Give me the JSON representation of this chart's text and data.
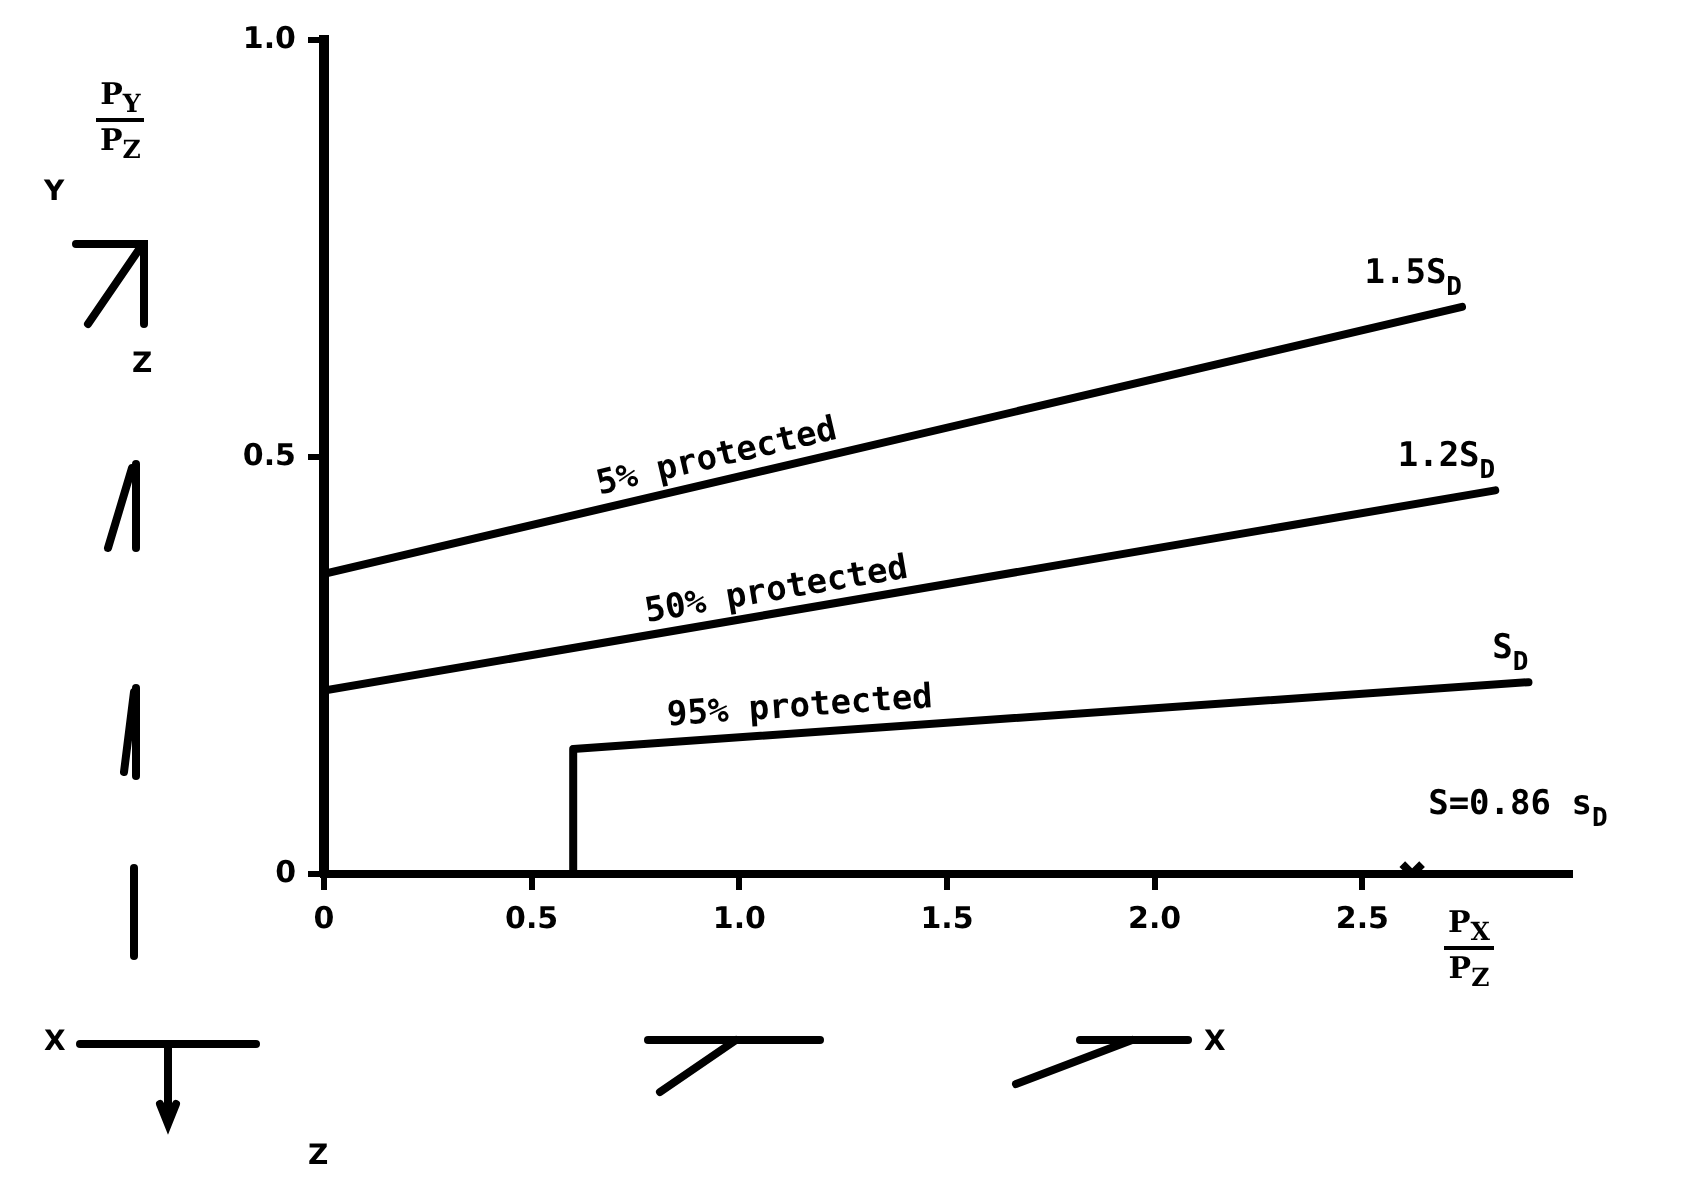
{
  "chart_data": {
    "type": "line",
    "xlabel": "P$_{X}$\nP$_{Z}$",
    "ylabel": "P$_{Y}$\nP$_{Z}$",
    "xlim": [
      0,
      3.0
    ],
    "ylim": [
      0,
      1.0
    ],
    "xticks": [
      0,
      0.5,
      {
        "value": 1,
        "label": "1.0"
      },
      1.5,
      {
        "value": 2,
        "label": "2.0"
      },
      2.5
    ],
    "yticks": [
      0,
      0.5,
      {
        "value": 1,
        "label": "1.0"
      }
    ],
    "grid": false,
    "legend": false,
    "marker": "none",
    "line_style": "solid",
    "series": [
      {
        "name": "1.5S$_{D}$",
        "color": "#000000",
        "x": [
          0,
          2.74
        ],
        "values": [
          0.36,
          0.68
        ]
      },
      {
        "name": "1.2S$_{D}$",
        "color": "#000000",
        "x": [
          0,
          2.82
        ],
        "values": [
          0.22,
          0.46
        ]
      },
      {
        "name": "S$_{D}$",
        "color": "#000000",
        "x": [
          0.6,
          0.6,
          2.9
        ],
        "values": [
          0,
          0.15,
          0.23
        ]
      },
      {
        "type": "scatter",
        "marker": "cross",
        "color": "#000000",
        "x": [
          2.62
        ],
        "values": [
          0
        ]
      }
    ],
    "annotations": [
      {
        "text": "5% protected",
        "x": 0.96,
        "y": 0.47
      },
      {
        "text": "50% protected",
        "x": 1.1,
        "y": 0.31
      },
      {
        "text": "95% protected",
        "x": 1.15,
        "y": 0.17
      },
      {
        "text": "S=0.86 s$_{D}$",
        "x": 2.62,
        "y": 0
      },
      "Y",
      "Z",
      "X",
      "Z",
      "X"
    ]
  }
}
